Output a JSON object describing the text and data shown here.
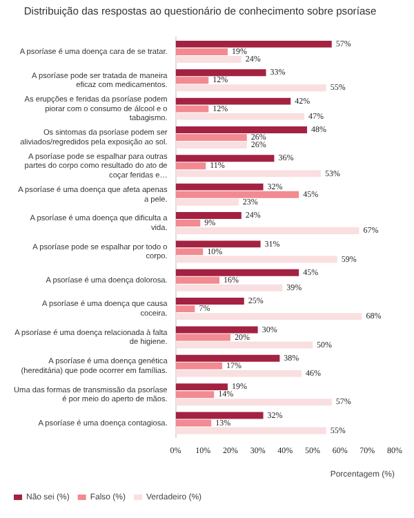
{
  "chart_data": {
    "type": "bar",
    "orientation": "horizontal",
    "title": "Distribuição das respostas ao questionário de conhecimento sobre psoríase",
    "xlabel": "Porcentagem (%)",
    "categories": [
      "A psoríase é uma doença cara de se tratar.",
      "A psoríase pode ser tratada de maneira eficaz com medicamentos.",
      "As erupções e feridas da psoríase podem piorar com o consumo de álcool e o tabagismo.",
      "Os sintomas da psoríase podem ser aliviados/regredidos pela exposição ao sol.",
      "A psoríase pode se espalhar para outras partes do corpo como resultado do ato de coçar feridas e…",
      "A psoríase é uma doença que afeta apenas a pele.",
      "A psoríase é uma doença que dificulta a vida.",
      "A psoríase pode se espalhar por todo o corpo.",
      "A psoríase é uma doença dolorosa.",
      "A psoríase é uma doença que causa coceira.",
      "A psoríase é uma doença relacionada à falta de higiene.",
      "A psoríase é uma doença genética (hereditária) que pode ocorrer em famílias.",
      "Uma das formas de transmissão da psoríase é por meio do aperto de mãos.",
      "A psoríase é uma doença contagiosa."
    ],
    "series": [
      {
        "name": "Não sei (%)",
        "color": "#a32242",
        "values": [
          57,
          33,
          42,
          48,
          36,
          32,
          24,
          31,
          45,
          25,
          30,
          38,
          19,
          32
        ],
        "value_labels": [
          "57%",
          "33%",
          "42%",
          "48%",
          "36%",
          "32%",
          "24%",
          "31%",
          "45%",
          "25%",
          "30%",
          "38%",
          "19%",
          "32%"
        ]
      },
      {
        "name": "Falso (%)",
        "color": "#f28a91",
        "values": [
          19,
          12,
          12,
          26,
          11,
          45,
          9,
          10,
          16,
          7,
          20,
          17,
          14,
          13
        ],
        "value_labels": [
          "19%",
          "12%",
          "12%",
          "26%",
          "11%",
          "45%",
          "9%",
          "10%",
          "16%",
          "7%",
          "20%",
          "17%",
          "14%",
          "13%"
        ]
      },
      {
        "name": "Verdadeiro (%)",
        "color": "#f9dfe0",
        "values": [
          24,
          55,
          47,
          26,
          53,
          23,
          67,
          59,
          39,
          68,
          50,
          46,
          57,
          55
        ],
        "value_labels": [
          "24%",
          "55%",
          "47%",
          "26%",
          "53%",
          "23%",
          "67%",
          "59%",
          "39%",
          "68%",
          "50%",
          "46%",
          "57%",
          "55%"
        ]
      }
    ],
    "xlim": [
      0,
      80
    ],
    "xticks": [
      {
        "value": 0,
        "label": "0%"
      },
      {
        "value": 10,
        "label": "10%"
      },
      {
        "value": 20,
        "label": "20%"
      },
      {
        "value": 30,
        "label": "30%"
      },
      {
        "value": 40,
        "label": "40%"
      },
      {
        "value": 50,
        "label": "50%"
      },
      {
        "value": 60,
        "label": "60%"
      },
      {
        "value": 70,
        "label": "70%"
      },
      {
        "value": 80,
        "label": "80%"
      }
    ],
    "grid": false,
    "legend": "bottom left"
  }
}
